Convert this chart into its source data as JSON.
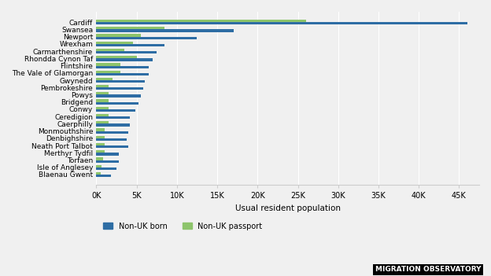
{
  "categories": [
    "Cardiff",
    "Swansea",
    "Newport",
    "Wrexham",
    "Carmarthenshire",
    "Rhondda Cynon Taf",
    "Flintshire",
    "The Vale of Glamorgan",
    "Gwynedd",
    "Pembrokeshire",
    "Powys",
    "Bridgend",
    "Conwy",
    "Ceredigion",
    "Caerphilly",
    "Monmouthshire",
    "Denbighshire",
    "Neath Port Talbot",
    "Merthyr Tydfil",
    "Torfaen",
    "Isle of Anglesey",
    "Blaenau Gwent"
  ],
  "non_uk_born": [
    46000,
    17000,
    12500,
    8500,
    7500,
    7000,
    6500,
    6500,
    6000,
    5800,
    5500,
    5200,
    4800,
    4200,
    4200,
    4000,
    3800,
    4000,
    2800,
    2800,
    2500,
    1800
  ],
  "non_uk_passport": [
    26000,
    8500,
    5500,
    4500,
    3500,
    5000,
    3000,
    3000,
    2000,
    1500,
    1500,
    1500,
    1500,
    1500,
    1500,
    1000,
    1000,
    1000,
    1000,
    800,
    600,
    500
  ],
  "color_born": "#2e6da4",
  "color_passport": "#8dc46b",
  "xlabel": "Usual resident population",
  "xlim": [
    0,
    47500
  ],
  "xticks": [
    0,
    5000,
    10000,
    15000,
    20000,
    25000,
    30000,
    35000,
    40000,
    45000
  ],
  "xticklabels": [
    "0K",
    "5K",
    "10K",
    "15K",
    "20K",
    "25K",
    "30K",
    "35K",
    "40K",
    "45K"
  ],
  "legend_born": "Non-UK born",
  "legend_passport": "Non-UK passport",
  "footer": "MIGRATION OBSERVATORY",
  "bg_color": "#f0f0f0",
  "bar_height": 0.35
}
